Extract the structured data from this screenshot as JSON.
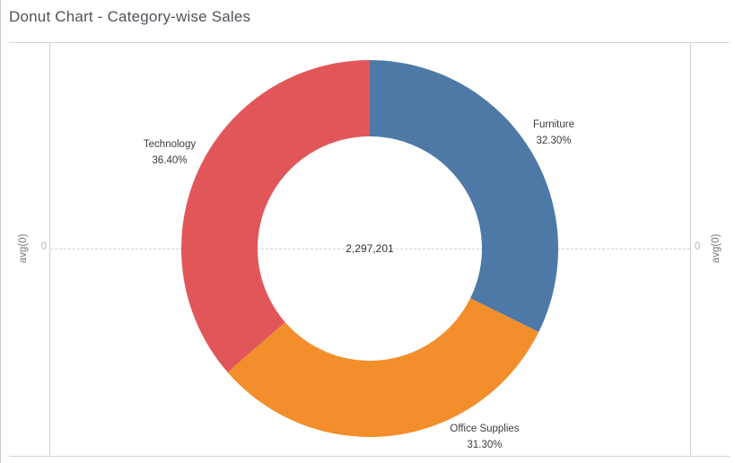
{
  "window": {
    "title": "Donut Chart - Category-wise Sales"
  },
  "axes": {
    "left": {
      "title": "avg(0)",
      "tick": "0"
    },
    "right": {
      "title": "avg(0)",
      "tick": "0"
    }
  },
  "chart_data": {
    "type": "pie",
    "variant": "donut",
    "title": "Donut Chart - Category-wise Sales",
    "center_label": "2,297,201",
    "start_angle_deg": 0,
    "direction": "clockwise",
    "inner_radius_ratio": 0.595,
    "grid": "zero-line-dashed",
    "segments": [
      {
        "label": "Furniture",
        "percent": 32.3,
        "percent_label": "32.30%",
        "color": "#4e79a7"
      },
      {
        "label": "Office Supplies",
        "percent": 31.3,
        "percent_label": "31.30%",
        "color": "#f28e2b"
      },
      {
        "label": "Technology",
        "percent": 36.4,
        "percent_label": "36.40%",
        "color": "#e15759"
      }
    ]
  }
}
